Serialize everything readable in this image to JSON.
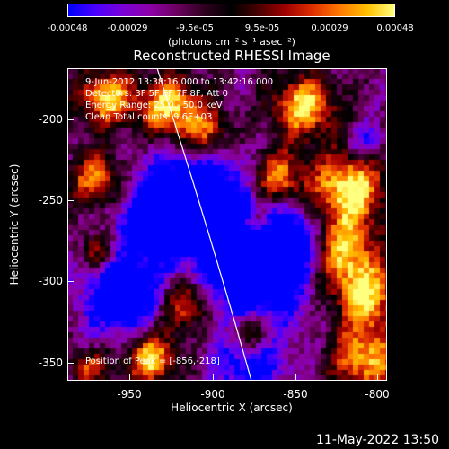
{
  "colorbar": {
    "ticks": [
      "-0.00048",
      "-0.00029",
      "-9.5e-05",
      "9.5e-05",
      "0.00029",
      "0.00048"
    ],
    "units": "(photons cm⁻² s⁻¹ asec⁻²)",
    "colors": [
      "#0000ff",
      "#4b00ff",
      "#7a00d8",
      "#8c00a8",
      "#6c0060",
      "#300020",
      "#000000",
      "#4a0000",
      "#a00000",
      "#e03000",
      "#ff7a00",
      "#ffc000",
      "#ffff80"
    ]
  },
  "title": "Reconstructed RHESSI Image",
  "info_lines": [
    "9-Jun-2012 13:38:16.000 to 13:42:16.000",
    "Detectors: 3F 5F 6F 7F 8F, Att 0",
    "Energy Range: 25.0 - 50.0 keV",
    "Clean     Total counts: 9.6E+03"
  ],
  "peak_text": "Position of Peak = [-856,-218]",
  "x_axis": {
    "label": "Heliocentric X (arcsec)",
    "ticks": [
      "-950",
      "-900",
      "-850",
      "-800"
    ],
    "range": [
      -988,
      -794
    ]
  },
  "y_axis": {
    "label": "Heliocentric Y (arcsec)",
    "ticks": [
      "-200",
      "-250",
      "-300",
      "-350"
    ],
    "range": [
      -362,
      -177
    ]
  },
  "datestamp": "11-May-2022 13:50"
}
